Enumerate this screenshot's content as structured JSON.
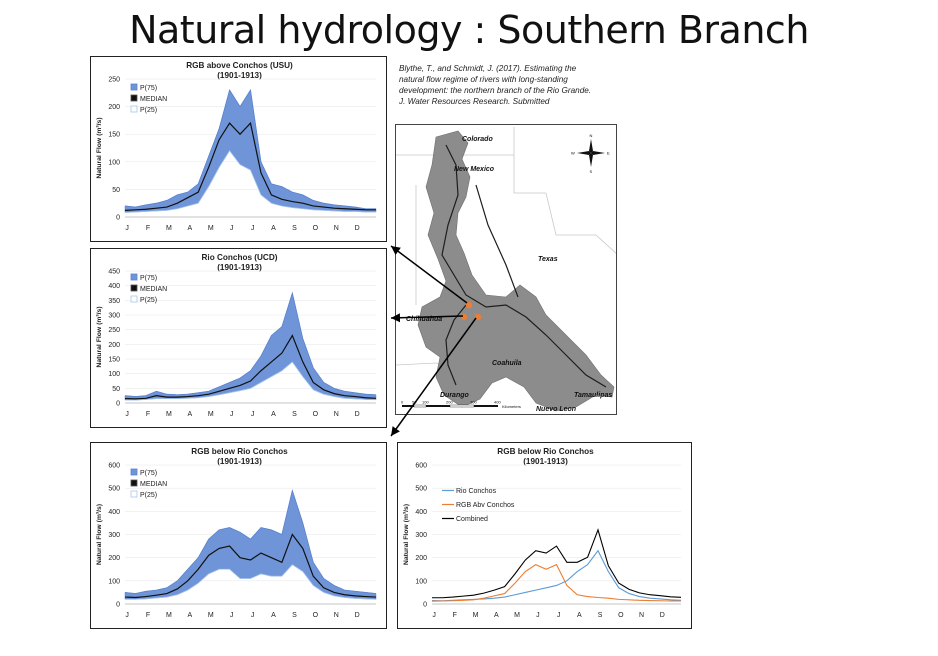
{
  "slide": {
    "title": "Natural hydrology : Southern Branch",
    "citation_lines": [
      "Blythe, T., and Schmidt, J.  (2017). Estimating the",
      "natural flow regime of rivers with long-standing",
      "development: the northern branch of the Rio Grande.",
      "J. Water Resources Research. Submitted"
    ]
  },
  "map": {
    "labels": [
      "Colorado",
      "New Mexico",
      "Texas",
      "Chihuahua",
      "Coahuila",
      "Durango",
      "Nuevo Leon",
      "Tamaulipas"
    ],
    "compass": {
      "n": "N",
      "s": "S",
      "e": "E",
      "w": "W"
    },
    "scale_ticks": [
      "0",
      "50",
      "100",
      "200",
      "300",
      "400"
    ],
    "scale_unit": "Kilometers"
  },
  "chart_data": [
    {
      "type": "area",
      "title": "RGB above Conchos (USU)",
      "subtitle": "(1901-1913)",
      "xlabel": "",
      "ylabel": "Natural Flow (m³/s)",
      "categories": [
        "J",
        "F",
        "M",
        "A",
        "M",
        "J",
        "J",
        "A",
        "S",
        "O",
        "N",
        "D"
      ],
      "ylim": [
        0,
        250
      ],
      "yticks": [
        0,
        50,
        100,
        150,
        200,
        250
      ],
      "legend": [
        "P(75)",
        "MEDIAN",
        "P(25)"
      ],
      "legend_position": "top-left",
      "x": [
        0,
        0.5,
        1,
        1.5,
        2,
        2.5,
        3,
        3.5,
        4,
        4.5,
        5,
        5.5,
        6,
        6.5,
        7,
        7.5,
        8,
        8.5,
        9,
        9.5,
        10,
        10.5,
        11,
        11.5,
        12
      ],
      "series": [
        {
          "name": "P(75)",
          "values": [
            20,
            18,
            22,
            25,
            30,
            40,
            45,
            60,
            110,
            160,
            230,
            200,
            230,
            100,
            60,
            55,
            45,
            40,
            30,
            25,
            22,
            20,
            18,
            15,
            15
          ]
        },
        {
          "name": "MEDIAN",
          "values": [
            12,
            13,
            14,
            16,
            18,
            25,
            35,
            45,
            90,
            140,
            170,
            150,
            170,
            80,
            40,
            32,
            28,
            25,
            20,
            18,
            16,
            15,
            14,
            13,
            13
          ]
        },
        {
          "name": "P(25)",
          "values": [
            8,
            9,
            10,
            11,
            12,
            15,
            20,
            25,
            55,
            90,
            120,
            95,
            85,
            40,
            25,
            20,
            17,
            15,
            13,
            12,
            11,
            10,
            10,
            9,
            9
          ]
        }
      ]
    },
    {
      "type": "area",
      "title": "Rio Conchos (UCD)",
      "subtitle": "(1901-1913)",
      "xlabel": "",
      "ylabel": "Natural Flow (m³/s)",
      "categories": [
        "J",
        "F",
        "M",
        "A",
        "M",
        "J",
        "J",
        "A",
        "S",
        "O",
        "N",
        "D"
      ],
      "ylim": [
        0,
        450
      ],
      "yticks": [
        0,
        50,
        100,
        150,
        200,
        250,
        300,
        350,
        400,
        450
      ],
      "legend": [
        "P(75)",
        "MEDIAN",
        "P(25)"
      ],
      "legend_position": "top-left",
      "x": [
        0,
        0.5,
        1,
        1.5,
        2,
        2.5,
        3,
        3.5,
        4,
        4.5,
        5,
        5.5,
        6,
        6.5,
        7,
        7.5,
        8,
        8.5,
        9,
        9.5,
        10,
        10.5,
        11,
        11.5,
        12
      ],
      "series": [
        {
          "name": "P(75)",
          "values": [
            25,
            22,
            25,
            40,
            30,
            28,
            30,
            35,
            40,
            55,
            70,
            85,
            110,
            160,
            230,
            260,
            375,
            220,
            120,
            70,
            50,
            40,
            35,
            30,
            28
          ]
        },
        {
          "name": "MEDIAN",
          "values": [
            15,
            14,
            16,
            25,
            20,
            20,
            22,
            25,
            30,
            40,
            50,
            60,
            75,
            110,
            140,
            170,
            230,
            140,
            70,
            45,
            32,
            25,
            22,
            18,
            16
          ]
        },
        {
          "name": "P(25)",
          "values": [
            10,
            10,
            12,
            15,
            15,
            15,
            16,
            18,
            22,
            28,
            35,
            42,
            50,
            70,
            90,
            110,
            140,
            90,
            45,
            30,
            22,
            16,
            14,
            12,
            11
          ]
        }
      ]
    },
    {
      "type": "area",
      "title": "RGB below Rio Conchos",
      "subtitle": "(1901-1913)",
      "xlabel": "",
      "ylabel": "Natural Flow (m³/s)",
      "categories": [
        "J",
        "F",
        "M",
        "A",
        "M",
        "J",
        "J",
        "A",
        "S",
        "O",
        "N",
        "D"
      ],
      "ylim": [
        0,
        600
      ],
      "yticks": [
        0,
        100,
        200,
        300,
        400,
        500,
        600
      ],
      "legend": [
        "P(75)",
        "MEDIAN",
        "P(25)"
      ],
      "legend_position": "top-left",
      "x": [
        0,
        0.5,
        1,
        1.5,
        2,
        2.5,
        3,
        3.5,
        4,
        4.5,
        5,
        5.5,
        6,
        6.5,
        7,
        7.5,
        8,
        8.5,
        9,
        9.5,
        10,
        10.5,
        11,
        11.5,
        12
      ],
      "series": [
        {
          "name": "P(75)",
          "values": [
            50,
            45,
            55,
            60,
            70,
            100,
            150,
            200,
            280,
            320,
            330,
            310,
            280,
            330,
            320,
            300,
            490,
            350,
            180,
            110,
            80,
            60,
            55,
            50,
            45
          ]
        },
        {
          "name": "MEDIAN",
          "values": [
            30,
            28,
            32,
            38,
            45,
            65,
            100,
            150,
            210,
            240,
            250,
            200,
            190,
            220,
            200,
            180,
            300,
            240,
            120,
            70,
            50,
            40,
            35,
            32,
            30
          ]
        },
        {
          "name": "P(25)",
          "values": [
            20,
            20,
            22,
            26,
            30,
            40,
            60,
            90,
            130,
            150,
            150,
            110,
            110,
            130,
            120,
            120,
            170,
            140,
            80,
            50,
            35,
            28,
            24,
            22,
            20
          ]
        }
      ]
    },
    {
      "type": "line",
      "title": "RGB below Rio Conchos",
      "subtitle": "(1901-1913)",
      "xlabel": "",
      "ylabel": "Natural Flow (m³/s)",
      "categories": [
        "J",
        "F",
        "M",
        "A",
        "M",
        "J",
        "J",
        "A",
        "S",
        "O",
        "N",
        "D"
      ],
      "ylim": [
        0,
        600
      ],
      "yticks": [
        0,
        100,
        200,
        300,
        400,
        500,
        600
      ],
      "legend": [
        "Rio Conchos",
        "RGB Abv Conchos",
        "Combined"
      ],
      "legend_position": "top-left",
      "x": [
        0,
        0.5,
        1,
        1.5,
        2,
        2.5,
        3,
        3.5,
        4,
        4.5,
        5,
        5.5,
        6,
        6.5,
        7,
        7.5,
        8,
        8.5,
        9,
        9.5,
        10,
        10.5,
        11,
        11.5,
        12
      ],
      "series": [
        {
          "name": "Rio Conchos",
          "values": [
            15,
            14,
            16,
            18,
            20,
            22,
            25,
            30,
            40,
            50,
            60,
            70,
            80,
            100,
            140,
            170,
            230,
            140,
            70,
            45,
            32,
            25,
            22,
            18,
            16
          ]
        },
        {
          "name": "RGB Abv Conchos",
          "values": [
            12,
            13,
            14,
            16,
            18,
            25,
            35,
            45,
            90,
            140,
            170,
            150,
            170,
            80,
            40,
            32,
            28,
            25,
            20,
            18,
            16,
            15,
            14,
            13,
            13
          ]
        },
        {
          "name": "Combined",
          "values": [
            27,
            27,
            30,
            34,
            38,
            47,
            60,
            75,
            130,
            190,
            230,
            220,
            250,
            180,
            180,
            202,
            320,
            165,
            90,
            63,
            48,
            40,
            36,
            31,
            29
          ]
        }
      ]
    }
  ],
  "colors": {
    "band": "#6f95d8",
    "band_edge": "#5b84cf",
    "median": "#111111",
    "p25": "#a9c6ee",
    "rio_conchos": "#5b9bd5",
    "rgb_abv_conchos": "#ed7d31",
    "combined": "#000000",
    "map_basin": "#8c8c8c",
    "map_outline": "#c9c9c9",
    "gauge": "#ed7d31",
    "arrow": "#000000"
  }
}
